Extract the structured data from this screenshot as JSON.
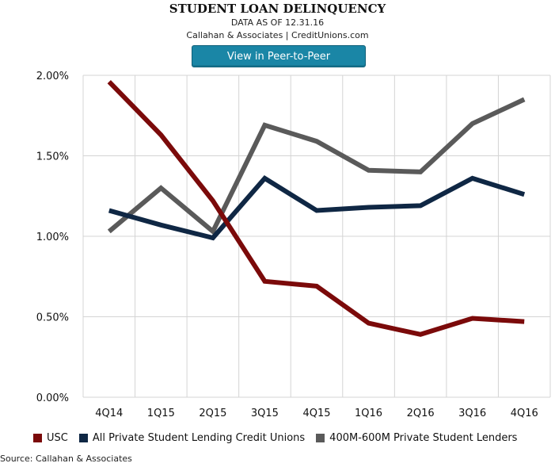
{
  "header": {
    "title": "STUDENT LOAN DELINQUENCY",
    "subtitle": "DATA AS OF 12.31.16",
    "credit": "Callahan & Associates | CreditUnions.com"
  },
  "button": {
    "label": "View in Peer-to-Peer"
  },
  "source": "Source: Callahan & Associates",
  "chart_data": {
    "type": "line",
    "title": "STUDENT LOAN DELINQUENCY",
    "categories": [
      "4Q14",
      "1Q15",
      "2Q15",
      "3Q15",
      "4Q15",
      "1Q16",
      "2Q16",
      "3Q16",
      "4Q16"
    ],
    "y_ticks": [
      "0.00%",
      "0.50%",
      "1.00%",
      "1.50%",
      "2.00%"
    ],
    "ylim": [
      0,
      2.0
    ],
    "y_unit": "%",
    "grid": true,
    "legend_position": "bottom",
    "series": [
      {
        "name": "USC",
        "color": "#7b0a0a",
        "values": [
          1.96,
          1.63,
          1.22,
          0.72,
          0.69,
          0.46,
          0.39,
          0.49,
          0.47
        ]
      },
      {
        "name": "All Private Student Lending Credit Unions",
        "color": "#0f2744",
        "values": [
          1.16,
          1.07,
          0.99,
          1.36,
          1.16,
          1.18,
          1.19,
          1.36,
          1.26
        ]
      },
      {
        "name": "400M-600M Private Student Lenders",
        "color": "#5a5a5a",
        "values": [
          1.03,
          1.3,
          1.03,
          1.69,
          1.59,
          1.41,
          1.4,
          1.7,
          1.85
        ]
      }
    ]
  }
}
